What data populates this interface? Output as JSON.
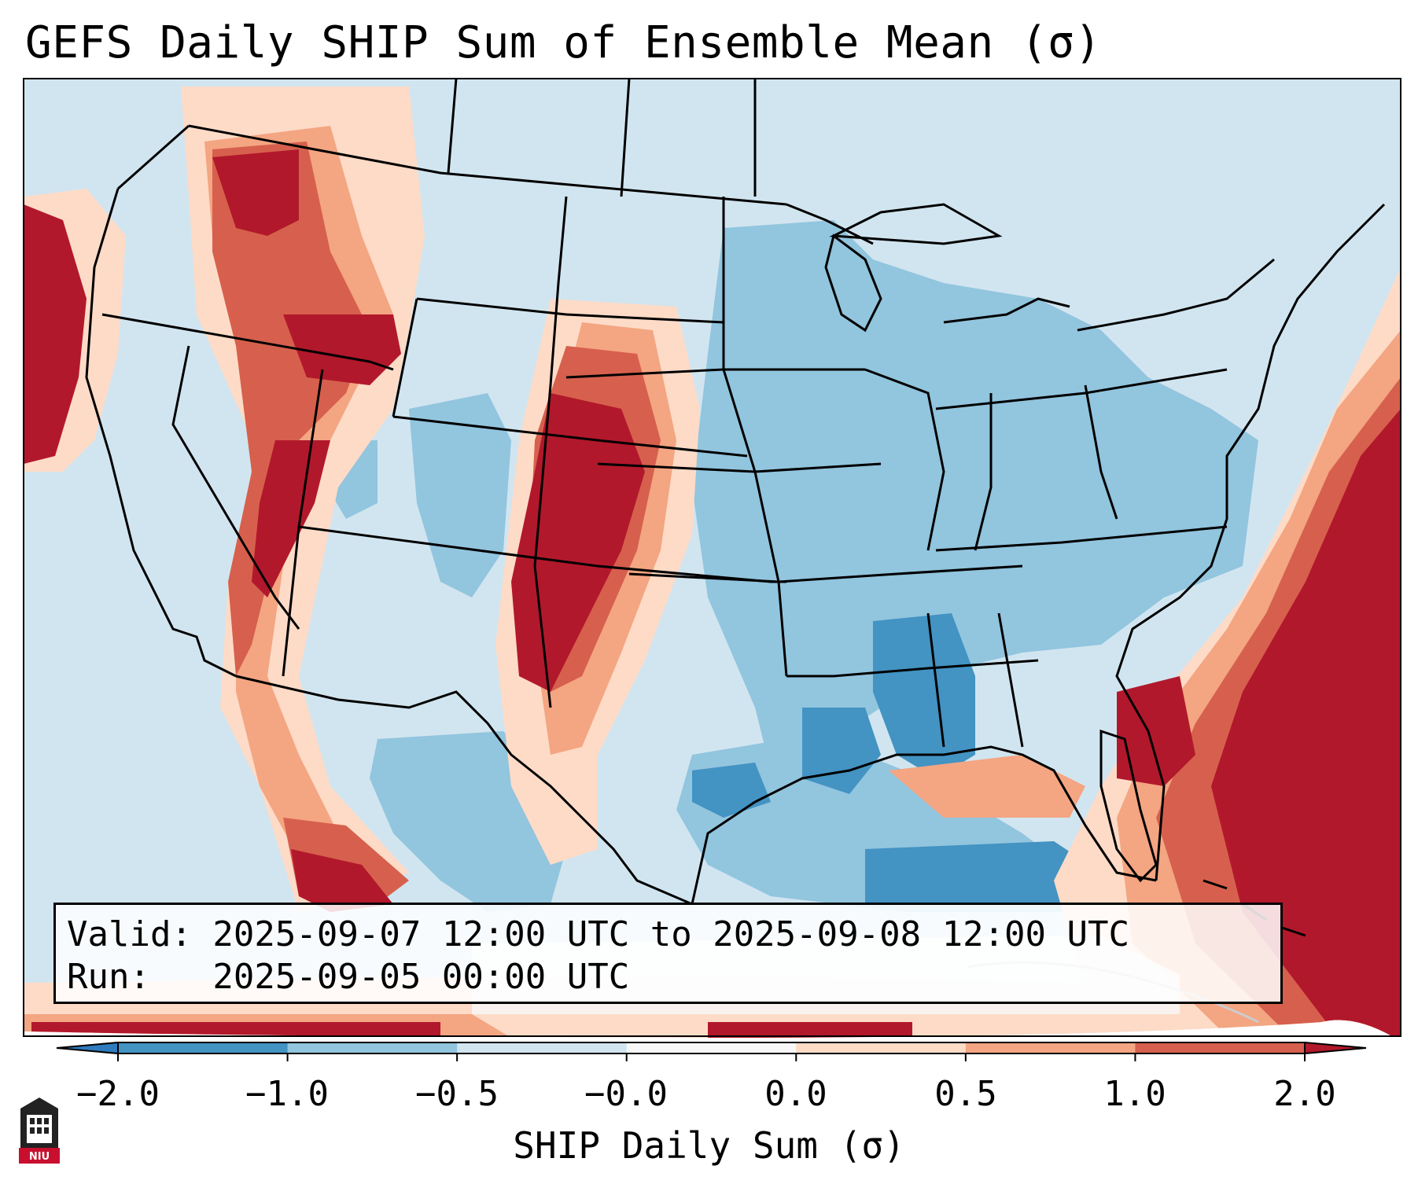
{
  "title": "GEFS Daily SHIP Sum of Ensemble Mean (σ)",
  "info": {
    "valid_line": "Valid: 2025-09-07 12:00 UTC to 2025-09-08 12:00 UTC",
    "run_line": "Run:   2025-09-05 00:00 UTC"
  },
  "colorbar": {
    "title": "SHIP Daily Sum (σ)",
    "ticks": [
      "−2.0",
      "−1.0",
      "−0.5",
      "−0.0",
      "0.0",
      "0.5",
      "1.0",
      "2.0"
    ],
    "colors": [
      "#2f7bbd",
      "#4393c3",
      "#92c5de",
      "#d1e5f0",
      "#f7f7f7",
      "#fddbc7",
      "#f4a582",
      "#d6604d",
      "#b2182b"
    ]
  },
  "map_colors": {
    "strong_neg": "#4393c3",
    "neg": "#92c5de",
    "weak_neg": "#d1e5f0",
    "weak_pos": "#fddbc7",
    "pos": "#f4a582",
    "mid_pos": "#d6604d",
    "strong_pos": "#b2182b"
  },
  "logo": {
    "text": "NIU",
    "color": "#c8102e"
  }
}
